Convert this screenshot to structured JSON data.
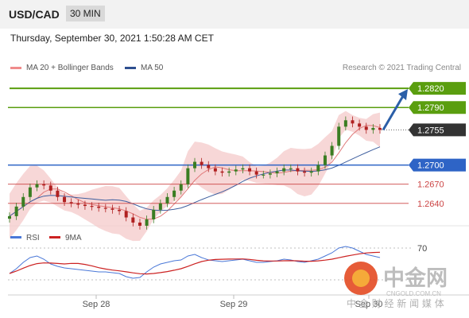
{
  "header": {
    "symbol": "USD/CAD",
    "timeframe": "30 MIN"
  },
  "datetime": "Thursday, September 30, 2021 1:50:28 AM CET",
  "legend": {
    "ma20": "MA 20 + Bollinger Bands",
    "ma50": "MA 50"
  },
  "credit": "Research © 2021 Trading Central",
  "colors": {
    "green": "#5a9e0f",
    "blue": "#2e64c6",
    "red": "#cc4444",
    "dark": "#333333",
    "band": "#f4c9c9",
    "ma20": "#e07a7a",
    "ma50": "#3f5f9f",
    "rsi": "#4a78d8",
    "rsi_ma": "#cc2222"
  },
  "chart_data": {
    "type": "candlestick",
    "pair": "USD/CAD",
    "timeframe": "30 MIN",
    "ylim": [
      1.26,
      1.284
    ],
    "levels": [
      {
        "value": "1.2820",
        "style": "green",
        "kind": "target"
      },
      {
        "value": "1.2790",
        "style": "green",
        "kind": "resistance"
      },
      {
        "value": "1.2755",
        "style": "dark",
        "kind": "last"
      },
      {
        "value": "1.2700",
        "style": "blue",
        "kind": "pivot"
      },
      {
        "value": "1.2670",
        "style": "red",
        "kind": "support"
      },
      {
        "value": "1.2640",
        "style": "red",
        "kind": "support"
      }
    ],
    "x_tick_labels": [
      "Sep 28",
      "Sep 29",
      "Sep 30"
    ],
    "price_path": [
      1.262,
      1.2635,
      1.265,
      1.2665,
      1.267,
      1.2668,
      1.266,
      1.265,
      1.2642,
      1.264,
      1.2638,
      1.2636,
      1.2635,
      1.2633,
      1.2632,
      1.263,
      1.2628,
      1.2618,
      1.261,
      1.2605,
      1.2615,
      1.263,
      1.264,
      1.265,
      1.266,
      1.267,
      1.2695,
      1.2705,
      1.27,
      1.2695,
      1.269,
      1.2688,
      1.269,
      1.2693,
      1.2695,
      1.269,
      1.2685,
      1.2685,
      1.2687,
      1.269,
      1.2695,
      1.2695,
      1.269,
      1.2688,
      1.269,
      1.27,
      1.2715,
      1.273,
      1.276,
      1.277,
      1.2765,
      1.276,
      1.2755,
      1.2758,
      1.2755
    ],
    "rsi": {
      "label": "RSI",
      "ma_label": "9MA",
      "level": "70",
      "values": [
        38,
        44,
        52,
        58,
        60,
        56,
        50,
        47,
        45,
        44,
        43,
        42,
        41,
        40,
        40,
        39,
        38,
        34,
        32,
        33,
        40,
        46,
        50,
        52,
        54,
        55,
        60,
        62,
        58,
        55,
        54,
        53,
        54,
        55,
        56,
        54,
        52,
        52,
        53,
        54,
        56,
        55,
        53,
        52,
        54,
        56,
        60,
        64,
        70,
        72,
        70,
        66,
        62,
        60,
        58
      ]
    }
  },
  "watermark": {
    "name": "中金网",
    "domain": "CNGOLD.COM.CN",
    "tagline": "中 金 财 经 新 闻 媒 体"
  }
}
